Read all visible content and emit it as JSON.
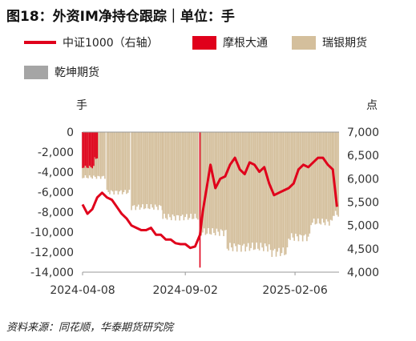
{
  "title": "图18：外资IM净持仓跟踪｜单位：手",
  "legend": {
    "csi1000": "中证1000（右轴）",
    "moxing": "摩根大通",
    "ruiyin": "瑞银期货",
    "qiankun": "乾坤期货"
  },
  "unit_left": "手",
  "unit_right": "点",
  "source": "资料来源：同花顺，华泰期货研究院",
  "colors": {
    "csi1000": "#e0001b",
    "moxing": "#e0001b",
    "ruiyin": "#d4bf9c",
    "qiankun": "#a5a5a5"
  },
  "chart_data": {
    "type": "bar",
    "left_axis": {
      "ylim": [
        -14000,
        0
      ],
      "ticks": [
        "0",
        "-2,000",
        "-4,000",
        "-6,000",
        "-8,000",
        "-10,000",
        "-12,000",
        "-14,000"
      ]
    },
    "right_axis": {
      "ylim": [
        4000,
        7000
      ],
      "ticks": [
        "7,000",
        "6,500",
        "6,000",
        "5,500",
        "5,000",
        "4,500",
        "4,000"
      ]
    },
    "x_ticks": [
      "2024-04-08",
      "2024-09-02",
      "2025-02-06"
    ],
    "series": [
      {
        "name": "摩根大通",
        "kind": "bar",
        "segments": [
          {
            "from": "2024-04-08",
            "to": "2024-04-24",
            "value": -3500
          },
          {
            "from": "2024-04-25",
            "to": "2024-04-30",
            "value": -2600
          },
          {
            "from": "2024-09-23",
            "to": "2024-09-23",
            "value": -14000
          }
        ]
      },
      {
        "name": "瑞银期货",
        "kind": "bar",
        "segments": [
          {
            "from": "2024-04-08",
            "to": "2024-05-10",
            "value": -4500
          },
          {
            "from": "2024-05-13",
            "to": "2024-06-14",
            "value": -6000
          },
          {
            "from": "2024-06-17",
            "to": "2024-07-31",
            "value": -7500
          },
          {
            "from": "2024-08-01",
            "to": "2024-09-20",
            "value": -8500
          },
          {
            "from": "2024-09-23",
            "to": "2024-10-31",
            "value": -10000
          },
          {
            "from": "2024-11-01",
            "to": "2024-12-31",
            "value": -11500
          },
          {
            "from": "2025-01-02",
            "to": "2025-01-27",
            "value": -12000
          },
          {
            "from": "2025-01-28",
            "to": "2025-02-28",
            "value": -10500
          },
          {
            "from": "2025-03-01",
            "to": "2025-03-31",
            "value": -9000
          },
          {
            "from": "2025-04-01",
            "to": "2025-04-10",
            "value": -8200
          }
        ]
      },
      {
        "name": "中证1000（右轴）",
        "kind": "line",
        "axis": "right",
        "points": [
          {
            "x": "2024-04-08",
            "y": 5450
          },
          {
            "x": "2024-04-15",
            "y": 5250
          },
          {
            "x": "2024-04-22",
            "y": 5350
          },
          {
            "x": "2024-04-29",
            "y": 5600
          },
          {
            "x": "2024-05-06",
            "y": 5700
          },
          {
            "x": "2024-05-13",
            "y": 5600
          },
          {
            "x": "2024-05-20",
            "y": 5550
          },
          {
            "x": "2024-05-27",
            "y": 5400
          },
          {
            "x": "2024-06-03",
            "y": 5250
          },
          {
            "x": "2024-06-10",
            "y": 5150
          },
          {
            "x": "2024-06-17",
            "y": 5000
          },
          {
            "x": "2024-06-24",
            "y": 4950
          },
          {
            "x": "2024-07-01",
            "y": 4900
          },
          {
            "x": "2024-07-08",
            "y": 4900
          },
          {
            "x": "2024-07-15",
            "y": 4950
          },
          {
            "x": "2024-07-22",
            "y": 4800
          },
          {
            "x": "2024-07-29",
            "y": 4800
          },
          {
            "x": "2024-08-05",
            "y": 4700
          },
          {
            "x": "2024-08-12",
            "y": 4700
          },
          {
            "x": "2024-08-19",
            "y": 4620
          },
          {
            "x": "2024-08-26",
            "y": 4600
          },
          {
            "x": "2024-09-02",
            "y": 4600
          },
          {
            "x": "2024-09-09",
            "y": 4520
          },
          {
            "x": "2024-09-16",
            "y": 4550
          },
          {
            "x": "2024-09-23",
            "y": 4800
          },
          {
            "x": "2024-09-27",
            "y": 5300
          },
          {
            "x": "2024-10-08",
            "y": 6300
          },
          {
            "x": "2024-10-15",
            "y": 5800
          },
          {
            "x": "2024-10-22",
            "y": 6000
          },
          {
            "x": "2024-10-29",
            "y": 6050
          },
          {
            "x": "2024-11-05",
            "y": 6300
          },
          {
            "x": "2024-11-12",
            "y": 6450
          },
          {
            "x": "2024-11-19",
            "y": 6200
          },
          {
            "x": "2024-11-26",
            "y": 6100
          },
          {
            "x": "2024-12-03",
            "y": 6350
          },
          {
            "x": "2024-12-10",
            "y": 6300
          },
          {
            "x": "2024-12-17",
            "y": 6150
          },
          {
            "x": "2024-12-24",
            "y": 6250
          },
          {
            "x": "2024-12-31",
            "y": 5900
          },
          {
            "x": "2025-01-07",
            "y": 5650
          },
          {
            "x": "2025-01-14",
            "y": 5700
          },
          {
            "x": "2025-01-21",
            "y": 5750
          },
          {
            "x": "2025-01-28",
            "y": 5800
          },
          {
            "x": "2025-02-04",
            "y": 5900
          },
          {
            "x": "2025-02-11",
            "y": 6200
          },
          {
            "x": "2025-02-18",
            "y": 6300
          },
          {
            "x": "2025-02-25",
            "y": 6250
          },
          {
            "x": "2025-03-04",
            "y": 6350
          },
          {
            "x": "2025-03-11",
            "y": 6450
          },
          {
            "x": "2025-03-18",
            "y": 6450
          },
          {
            "x": "2025-03-25",
            "y": 6300
          },
          {
            "x": "2025-04-01",
            "y": 6200
          },
          {
            "x": "2025-04-07",
            "y": 5400
          }
        ]
      }
    ]
  }
}
